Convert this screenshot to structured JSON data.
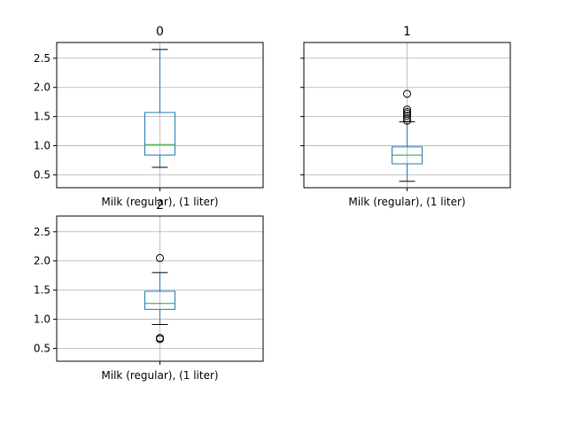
{
  "chart_data": [
    {
      "type": "boxplot",
      "title": "0",
      "category": "Milk (regular), (1 liter)",
      "ylim": [
        0.28,
        2.77
      ],
      "yticks": [
        0.5,
        1.0,
        1.5,
        2.0,
        2.5
      ],
      "ytick_labels": [
        "0.5",
        "1.0",
        "1.5",
        "2.0",
        "2.5"
      ],
      "show_ytick_labels": true,
      "grid": true,
      "box": {
        "whisker_low": 0.63,
        "q1": 0.84,
        "median": 1.02,
        "q3": 1.57,
        "whisker_high": 2.65
      },
      "outliers": []
    },
    {
      "type": "boxplot",
      "title": "1",
      "category": "Milk (regular), (1 liter)",
      "ylim": [
        0.28,
        2.77
      ],
      "yticks": [
        0.5,
        1.0,
        1.5,
        2.0,
        2.5
      ],
      "ytick_labels": [
        "0.5",
        "1.0",
        "1.5",
        "2.0",
        "2.5"
      ],
      "show_ytick_labels": false,
      "grid": true,
      "box": {
        "whisker_low": 0.39,
        "q1": 0.69,
        "median": 0.84,
        "q3": 0.98,
        "whisker_high": 1.41
      },
      "outliers": [
        1.43,
        1.47,
        1.51,
        1.55,
        1.58,
        1.62,
        1.89
      ]
    },
    {
      "type": "boxplot",
      "title": "2",
      "category": "Milk (regular), (1 liter)",
      "ylim": [
        0.28,
        2.77
      ],
      "yticks": [
        0.5,
        1.0,
        1.5,
        2.0,
        2.5
      ],
      "ytick_labels": [
        "0.5",
        "1.0",
        "1.5",
        "2.0",
        "2.5"
      ],
      "show_ytick_labels": true,
      "grid": true,
      "box": {
        "whisker_low": 0.91,
        "q1": 1.17,
        "median": 1.27,
        "q3": 1.48,
        "whisker_high": 1.8
      },
      "outliers": [
        0.66,
        0.68,
        2.05
      ]
    }
  ],
  "colors": {
    "box": "#1f77b4",
    "median": "#2ca02c",
    "whisker": "#1f77b4",
    "cap": "#000000",
    "grid": "#b0b0b0",
    "axes": "#000000"
  }
}
